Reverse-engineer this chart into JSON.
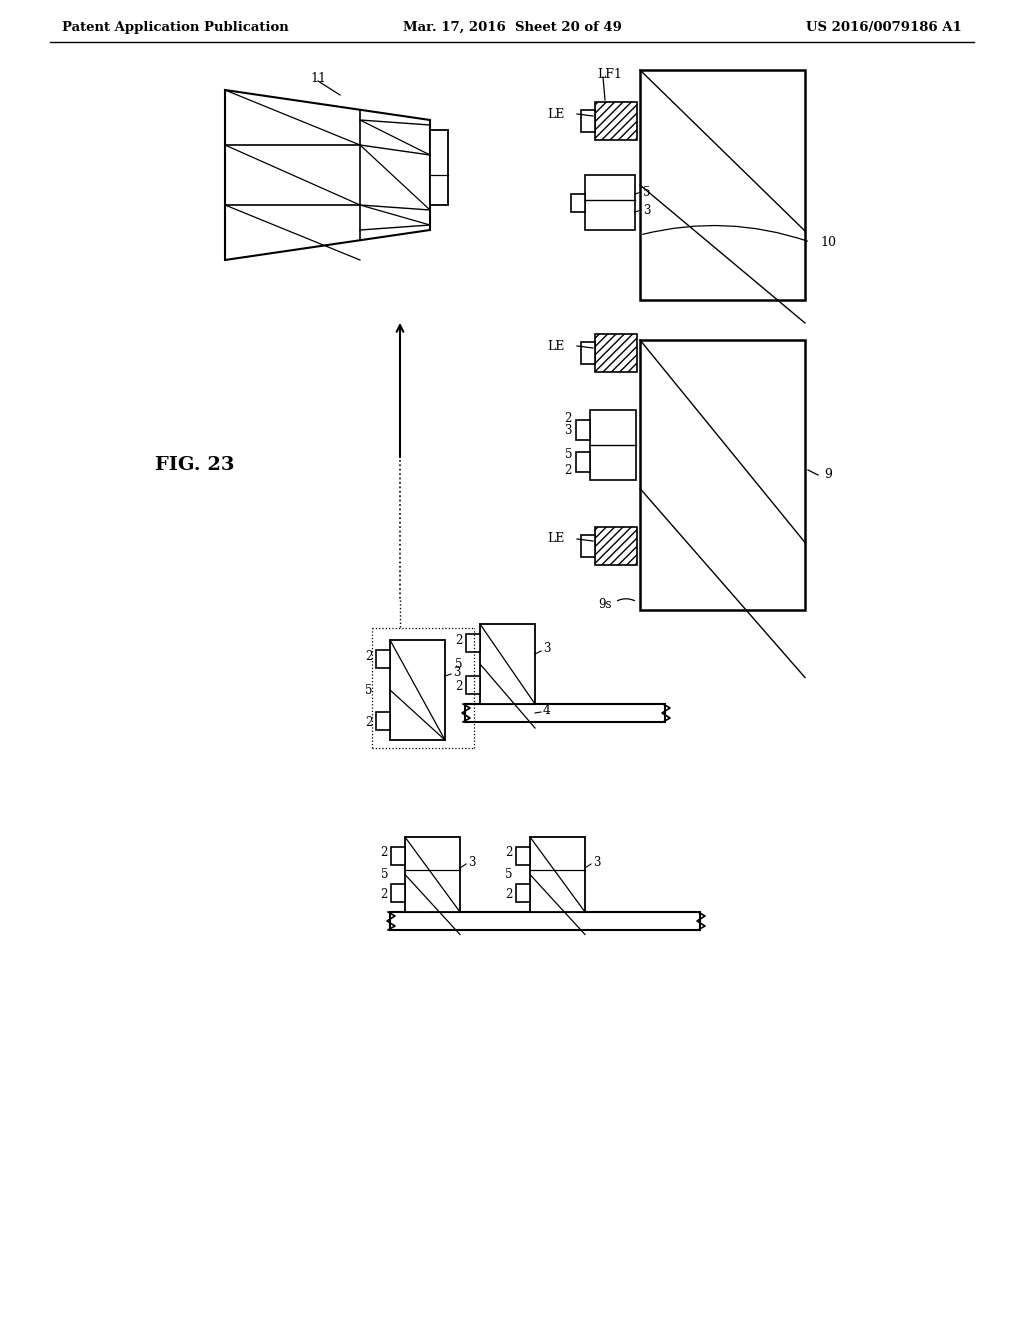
{
  "header_left": "Patent Application Publication",
  "header_mid": "Mar. 17, 2016  Sheet 20 of 49",
  "header_right": "US 2016/0079186 A1",
  "fig_label": "FIG. 23",
  "bg": "#ffffff"
}
